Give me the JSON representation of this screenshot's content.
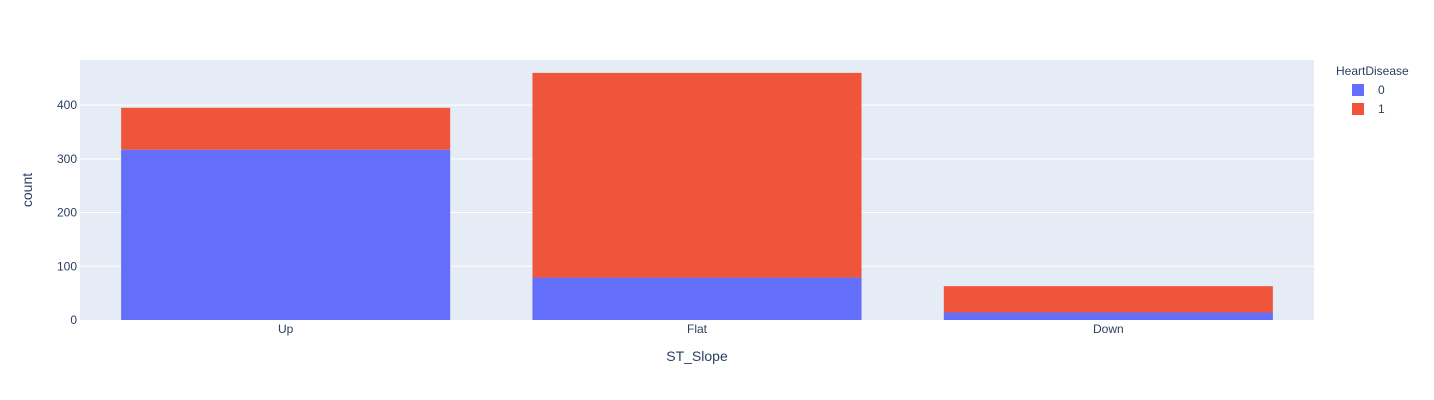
{
  "colors": {
    "plot_bg": "#e5ecf6",
    "grid": "#ffffff",
    "text": "#2a3f5f"
  },
  "chart_data": {
    "type": "bar",
    "barmode": "stack",
    "categories": [
      "Up",
      "Flat",
      "Down"
    ],
    "series": [
      {
        "name": "0",
        "color": "#636efa",
        "values": [
          317,
          79,
          14
        ]
      },
      {
        "name": "1",
        "color": "#ef553b",
        "values": [
          78,
          381,
          49
        ]
      }
    ],
    "xlabel": "ST_Slope",
    "ylabel": "count",
    "ylim": [
      0,
      484
    ],
    "yticks": [
      0,
      100,
      200,
      300,
      400
    ],
    "legend_title": "HeartDisease",
    "legend_position": "top-right",
    "grid": true
  }
}
